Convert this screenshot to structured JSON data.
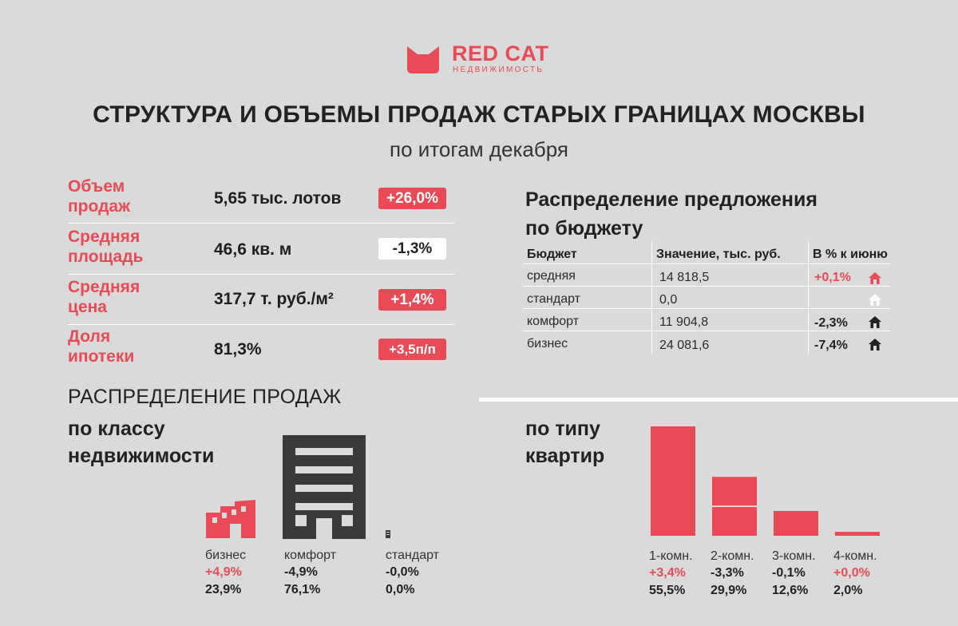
{
  "logo": {
    "name": "RED CAT",
    "subtitle": "НЕДВИЖИМОСТЬ"
  },
  "header": {
    "title": "СТРУКТУРА И ОБЪЕМЫ ПРОДАЖ СТАРЫХ ГРАНИЦАХ МОСКВЫ",
    "subtitle": "по итогам декабря"
  },
  "colors": {
    "accent": "#e84b55",
    "dark": "#3a3a3a",
    "background": "#dadada",
    "white": "#ffffff"
  },
  "kpis": [
    {
      "label_line1": "Объем",
      "label_line2": "продаж",
      "value": "5,65 тыс. лотов",
      "change": "+26,0%",
      "badge": "red"
    },
    {
      "label_line1": "Средняя",
      "label_line2": "площадь",
      "value": "46,6 кв. м",
      "change": "-1,3%",
      "badge": "white"
    },
    {
      "label_line1": "Средняя",
      "label_line2": "цена",
      "value": "317,7 т. руб./м²",
      "change": "+1,4%",
      "badge": "red"
    },
    {
      "label_line1": "Доля",
      "label_line2": "ипотеки",
      "value": "81,3%",
      "change": "+3,5п/п",
      "badge": "red"
    }
  ],
  "budget": {
    "title_line1": "Распределение предложения",
    "title_line2": "по бюджету",
    "headers": [
      "Бюджет",
      "Значение, тыс. руб.",
      "В % к июню"
    ],
    "rows": [
      {
        "name": "средняя",
        "value": "14 818,5",
        "change": "+0,1%",
        "icon": "house-icon",
        "icon_color": "#e84b55",
        "change_color": "#e84b55"
      },
      {
        "name": "стандарт",
        "value": "0,0",
        "change": "",
        "icon": "house-icon",
        "icon_color": "#ffffff",
        "change_color": "#222222"
      },
      {
        "name": "комфорт",
        "value": "11 904,8",
        "change": "-2,3%",
        "icon": "house-icon",
        "icon_color": "#222222",
        "change_color": "#222222"
      },
      {
        "name": "бизнес",
        "value": "24 081,6",
        "change": "-7,4%",
        "icon": "house-icon",
        "icon_color": "#222222",
        "change_color": "#222222"
      }
    ]
  },
  "sales": {
    "title": "РАСПРЕДЕЛЕНИЕ ПРОДАЖ",
    "by_class": {
      "title_line1": "по классу",
      "title_line2": "недвижимости",
      "items": [
        {
          "label": "бизнес",
          "change": "+4,9%",
          "share": "23,9%",
          "change_color": "#e84b55",
          "icon": "factory-icon"
        },
        {
          "label": "комфорт",
          "change": "-4,9%",
          "share": "76,1%",
          "change_color": "#222222",
          "icon": "building-icon"
        },
        {
          "label": "стандарт",
          "change": "-0,0%",
          "share": "0,0%",
          "change_color": "#222222",
          "icon": "tiny-building-icon"
        }
      ]
    },
    "by_type": {
      "title_line1": "по типу",
      "title_line2": "квартир"
    }
  },
  "chart_data": {
    "type": "bar",
    "title": "по типу квартир",
    "categories": [
      "1-комн.",
      "2-комн.",
      "3-комн.",
      "4-комн."
    ],
    "values": [
      55.5,
      29.9,
      12.6,
      2.0
    ],
    "value_labels": [
      "55,5%",
      "29,9%",
      "12,6%",
      "2,0%"
    ],
    "changes": [
      "+3,4%",
      "-3,3%",
      "-0,1%",
      "+0,0%"
    ],
    "change_colors": [
      "#e84b55",
      "#222222",
      "#222222",
      "#e84b55"
    ],
    "ylim": [
      0,
      55.5
    ],
    "grid": false,
    "legend": "none",
    "bar_color": "#e84b55"
  }
}
